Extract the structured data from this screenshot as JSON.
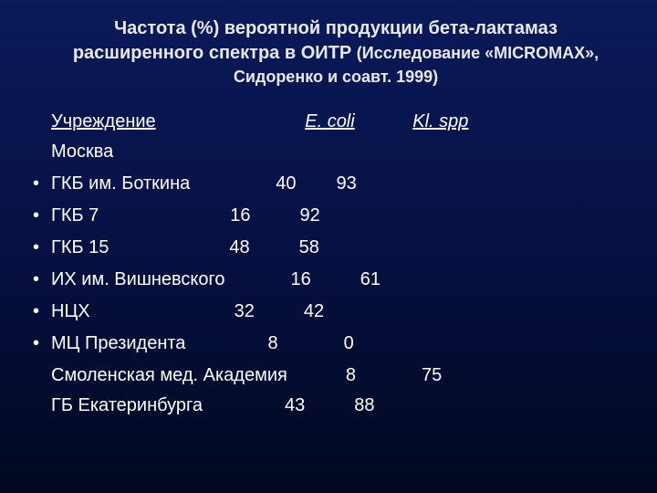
{
  "title": {
    "line1": "Частота (%) вероятной продукции бета-лактамаз",
    "line2_a": "расширенного спектра в ОИТР ",
    "line2_b": "(Исследование «MICROMAX»,",
    "line3": "Сидоренко и соавт. 1999)"
  },
  "headers": {
    "institution": "Учреждение",
    "ecoli": "E. coli",
    "klspp": "Kl. spp"
  },
  "moscow_label": "Москва",
  "rows": [
    {
      "name": "ГКБ им. Боткина",
      "v1": "40",
      "v2": "93",
      "gap1": 94,
      "gap2": 44
    },
    {
      "name": "ГКБ 7",
      "v1": "16",
      "v2": "92",
      "gap1": 144,
      "gap2": 54
    },
    {
      "name": "ГКБ 15",
      "v1": "48",
      "v2": "58",
      "gap1": 132,
      "gap2": 54
    },
    {
      "name": "ИХ им. Вишневского",
      "v1": "16",
      "v2": "61",
      "gap1": 72,
      "gap2": 54
    },
    {
      "name": "НЦХ",
      "v1": "32",
      "v2": "42",
      "gap1": 158,
      "gap2": 54
    },
    {
      "name": "МЦ Президента",
      "v1": "8",
      "v2": "0",
      "gap1": 90,
      "gap2": 72
    }
  ],
  "extra_rows": [
    {
      "name": "Смоленская мед. Академия",
      "v1": "8",
      "v2": "75",
      "gap1": 64,
      "gap2": 72
    },
    {
      "name": "ГБ Екатеринбурга",
      "v1": "43",
      "v2": "88",
      "gap1": 90,
      "gap2": 54
    }
  ],
  "colors": {
    "bg_top": "#0a1a5a",
    "bg_mid": "#061042",
    "bg_bottom": "#02081f",
    "text": "#ffffff",
    "title_text": "#e8e8e8"
  },
  "fonts": {
    "title_size_pt": 20,
    "body_size_pt": 20
  }
}
